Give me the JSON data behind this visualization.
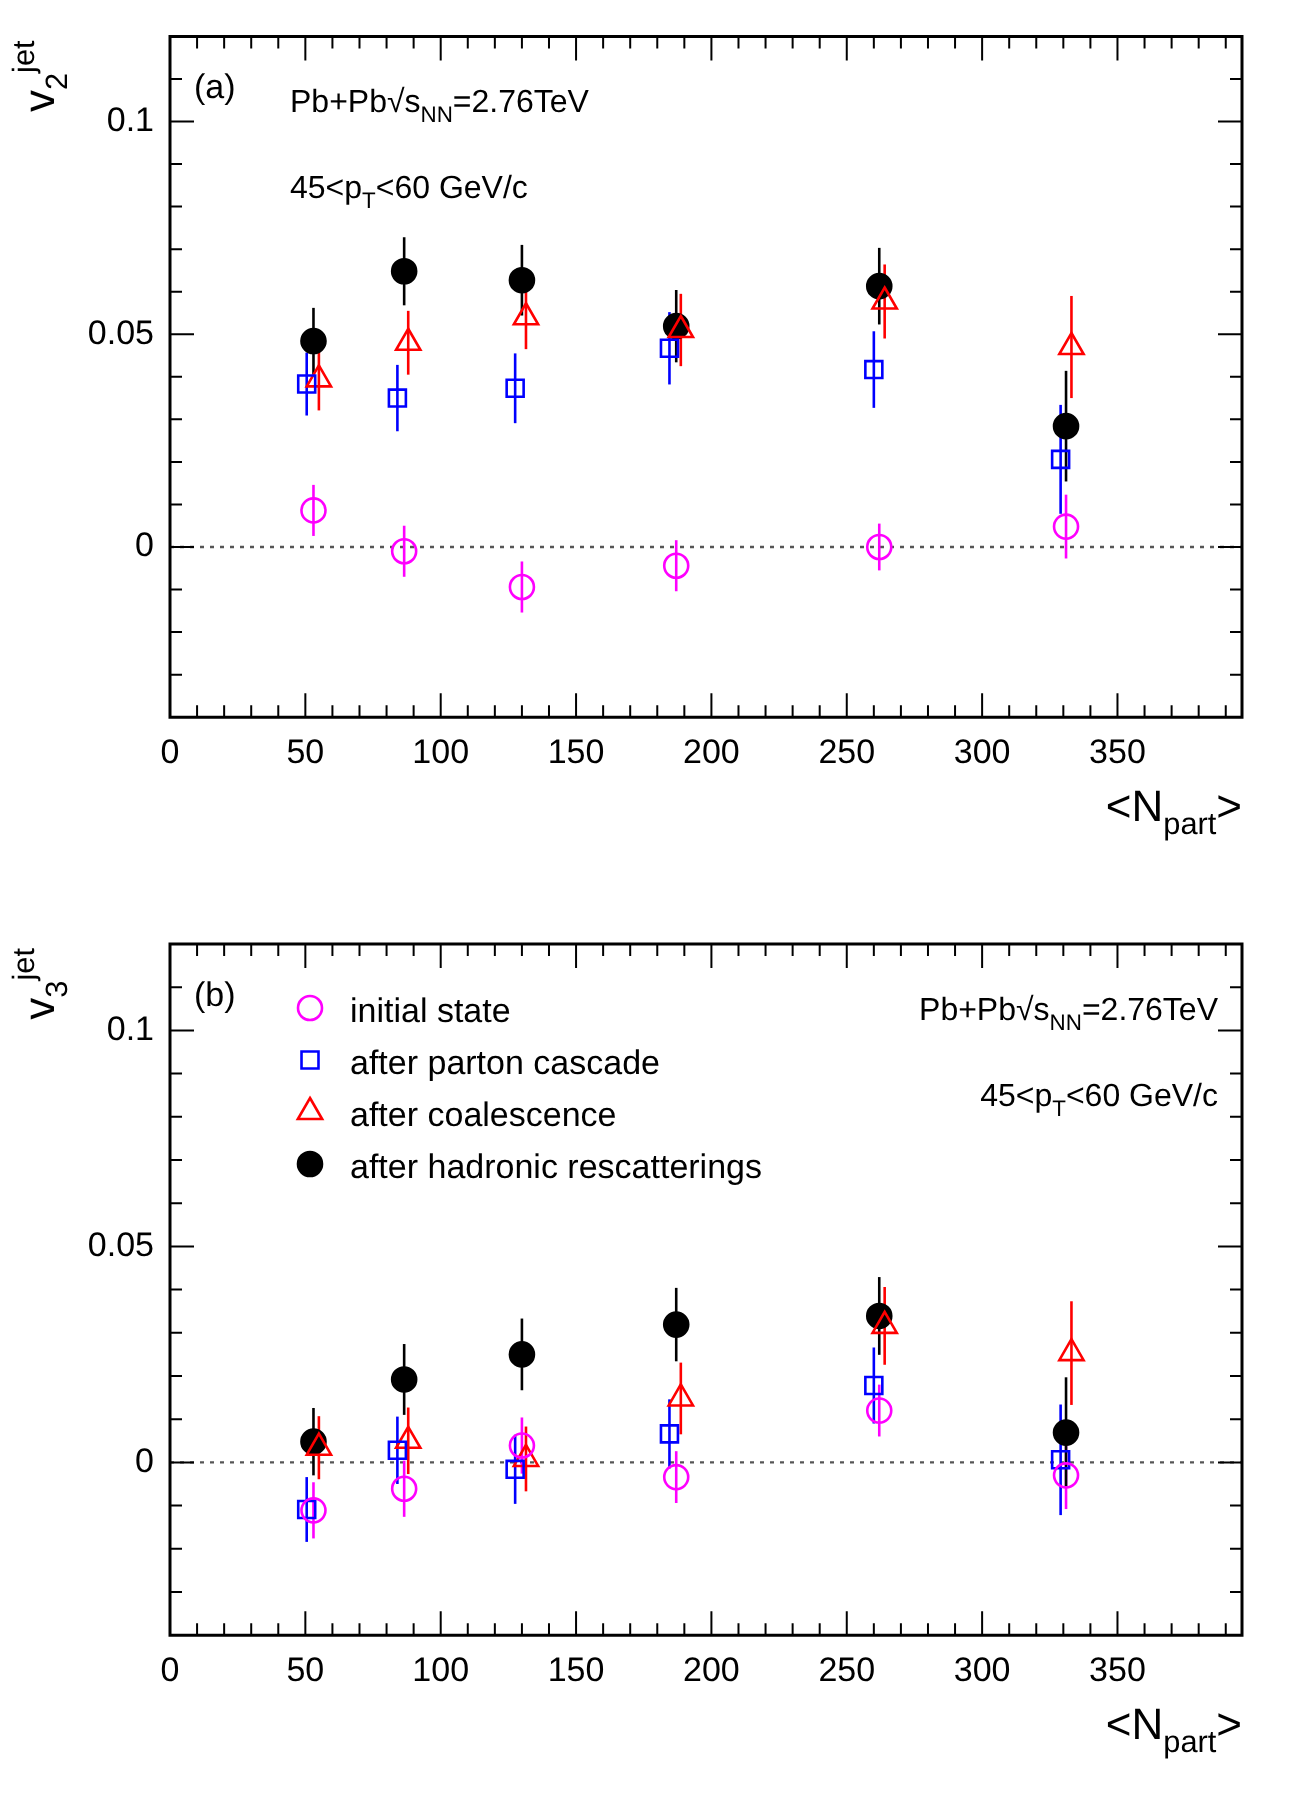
{
  "chart_data": [
    {
      "type": "scatter",
      "ylabel": "v$_{2}$$^{jet}$",
      "xlabel": "<N$_{part}$>",
      "xlim": [
        0,
        396
      ],
      "ylim": [
        -0.04,
        0.12
      ],
      "xticks": [
        0,
        {
          "value": 10,
          "label": null
        },
        {
          "value": 20,
          "label": null
        },
        {
          "value": 30,
          "label": null
        },
        {
          "value": 40,
          "label": null
        },
        50,
        {
          "value": 60,
          "label": null
        },
        {
          "value": 70,
          "label": null
        },
        {
          "value": 80,
          "label": null
        },
        {
          "value": 90,
          "label": null
        },
        100,
        {
          "value": 110,
          "label": null
        },
        {
          "value": 120,
          "label": null
        },
        {
          "value": 130,
          "label": null
        },
        {
          "value": 140,
          "label": null
        },
        150,
        {
          "value": 160,
          "label": null
        },
        {
          "value": 170,
          "label": null
        },
        {
          "value": 180,
          "label": null
        },
        {
          "value": 190,
          "label": null
        },
        200,
        {
          "value": 210,
          "label": null
        },
        {
          "value": 220,
          "label": null
        },
        {
          "value": 230,
          "label": null
        },
        {
          "value": 240,
          "label": null
        },
        250,
        {
          "value": 260,
          "label": null
        },
        {
          "value": 270,
          "label": null
        },
        {
          "value": 280,
          "label": null
        },
        {
          "value": 290,
          "label": null
        },
        300,
        {
          "value": 310,
          "label": null
        },
        {
          "value": 320,
          "label": null
        },
        {
          "value": 330,
          "label": null
        },
        {
          "value": 340,
          "label": null
        },
        350,
        {
          "value": 360,
          "label": null
        },
        {
          "value": 370,
          "label": null
        },
        {
          "value": 380,
          "label": null
        },
        {
          "value": 390,
          "label": null
        }
      ],
      "yticks": [
        {
          "value": -0.03,
          "label": null
        },
        {
          "value": -0.02,
          "label": null
        },
        {
          "value": -0.01,
          "label": null
        },
        0,
        {
          "value": 0.01,
          "label": null
        },
        {
          "value": 0.02,
          "label": null
        },
        {
          "value": 0.03,
          "label": null
        },
        {
          "value": 0.04,
          "label": null
        },
        0.05,
        {
          "value": 0.06,
          "label": null
        },
        {
          "value": 0.07,
          "label": null
        },
        {
          "value": 0.08,
          "label": null
        },
        {
          "value": 0.09,
          "label": null
        },
        0.1,
        {
          "value": 0.11,
          "label": null
        }
      ],
      "grid": false,
      "legend": false,
      "ref_lines": [
        {
          "axis": "y",
          "value": 0,
          "color": "#555555",
          "line_style": "dotted"
        }
      ],
      "annotations": [
        "(a)",
        "Pb+Pb√s$_{NN}$=2.76TeV",
        "45<p$_{T}$<60 GeV/c"
      ],
      "series": [
        {
          "color": "#ff00ff",
          "marker": "circle",
          "x": [
            53,
            86.5,
            130,
            187,
            262,
            331
          ],
          "values": [
            0.0086,
            -0.001,
            -0.0094,
            -0.0044,
            0,
            0.0048
          ],
          "errors": [
            0.006,
            0.006,
            0.006,
            0.006,
            0.0055,
            0.0075
          ]
        },
        {
          "color": "#0000ff",
          "marker": "square",
          "x": [
            50.5,
            84,
            127.5,
            184.5,
            260,
            329
          ],
          "values": [
            0.0383,
            0.035,
            0.0373,
            0.0467,
            0.0417,
            0.0206
          ],
          "errors": [
            0.0074,
            0.0078,
            0.0082,
            0.0085,
            0.009,
            0.0128
          ]
        },
        {
          "color": "#ff0000",
          "marker": "triangle",
          "x": [
            55,
            88,
            131.5,
            188.7,
            264,
            333
          ],
          "values": [
            0.0394,
            0.048,
            0.054,
            0.051,
            0.0577,
            0.047
          ],
          "errors": [
            0.0073,
            0.0075,
            0.0075,
            0.0085,
            0.0087,
            0.012
          ]
        },
        {
          "color": "#000000",
          "marker": "circle",
          "x": [
            53,
            86.5,
            130,
            187,
            262,
            331
          ],
          "values": [
            0.0484,
            0.0648,
            0.0627,
            0.0519,
            0.0613,
            0.0284
          ],
          "errors": [
            0.0078,
            0.008,
            0.0083,
            0.0085,
            0.009,
            0.013
          ]
        }
      ]
    },
    {
      "type": "scatter",
      "ylabel": "v$_{3}$$^{jet}$",
      "xlabel": "<N$_{part}$>",
      "xlim": [
        0,
        396
      ],
      "ylim": [
        -0.04,
        0.12
      ],
      "xticks": [
        0,
        {
          "value": 10,
          "label": null
        },
        {
          "value": 20,
          "label": null
        },
        {
          "value": 30,
          "label": null
        },
        {
          "value": 40,
          "label": null
        },
        50,
        {
          "value": 60,
          "label": null
        },
        {
          "value": 70,
          "label": null
        },
        {
          "value": 80,
          "label": null
        },
        {
          "value": 90,
          "label": null
        },
        100,
        {
          "value": 110,
          "label": null
        },
        {
          "value": 120,
          "label": null
        },
        {
          "value": 130,
          "label": null
        },
        {
          "value": 140,
          "label": null
        },
        150,
        {
          "value": 160,
          "label": null
        },
        {
          "value": 170,
          "label": null
        },
        {
          "value": 180,
          "label": null
        },
        {
          "value": 190,
          "label": null
        },
        200,
        {
          "value": 210,
          "label": null
        },
        {
          "value": 220,
          "label": null
        },
        {
          "value": 230,
          "label": null
        },
        {
          "value": 240,
          "label": null
        },
        250,
        {
          "value": 260,
          "label": null
        },
        {
          "value": 270,
          "label": null
        },
        {
          "value": 280,
          "label": null
        },
        {
          "value": 290,
          "label": null
        },
        300,
        {
          "value": 310,
          "label": null
        },
        {
          "value": 320,
          "label": null
        },
        {
          "value": 330,
          "label": null
        },
        {
          "value": 340,
          "label": null
        },
        350,
        {
          "value": 360,
          "label": null
        },
        {
          "value": 370,
          "label": null
        },
        {
          "value": 380,
          "label": null
        },
        {
          "value": 390,
          "label": null
        }
      ],
      "yticks": [
        {
          "value": -0.03,
          "label": null
        },
        {
          "value": -0.02,
          "label": null
        },
        {
          "value": -0.01,
          "label": null
        },
        0,
        {
          "value": 0.01,
          "label": null
        },
        {
          "value": 0.02,
          "label": null
        },
        {
          "value": 0.03,
          "label": null
        },
        {
          "value": 0.04,
          "label": null
        },
        0.05,
        {
          "value": 0.06,
          "label": null
        },
        {
          "value": 0.07,
          "label": null
        },
        {
          "value": 0.08,
          "label": null
        },
        {
          "value": 0.09,
          "label": null
        },
        0.1,
        {
          "value": 0.11,
          "label": null
        }
      ],
      "grid": false,
      "legend": "top left",
      "ref_lines": [
        {
          "axis": "y",
          "value": 0,
          "color": "#555555",
          "line_style": "dotted"
        }
      ],
      "annotations": [
        "(b)",
        "Pb+Pb√s$_{NN}$=2.76TeV",
        "45<p$_{T}$<60 GeV/c"
      ],
      "series": [
        {
          "name": "initial state",
          "color": "#ff00ff",
          "marker": "circle",
          "x": [
            53,
            86.5,
            130,
            187,
            262,
            331
          ],
          "values": [
            -0.0111,
            -0.0061,
            0.0039,
            -0.0034,
            0.012,
            -0.003
          ],
          "errors": [
            0.0065,
            0.0065,
            0.0065,
            0.006,
            0.006,
            0.0078
          ]
        },
        {
          "name": "after parton cascade",
          "color": "#0000ff",
          "marker": "square",
          "x": [
            50.5,
            84,
            127.5,
            184.5,
            260,
            329
          ],
          "values": [
            -0.0109,
            0.0028,
            -0.0016,
            0.0066,
            0.0178,
            0.0006
          ],
          "errors": [
            0.0075,
            0.0078,
            0.008,
            0.008,
            0.0088,
            0.0128
          ]
        },
        {
          "name": "after coalescence",
          "color": "#ff0000",
          "marker": "triangle",
          "x": [
            55,
            88,
            131.5,
            188.7,
            264,
            333
          ],
          "values": [
            0.0034,
            0.005,
            0.0008,
            0.0148,
            0.0316,
            0.0253
          ],
          "errors": [
            0.0073,
            0.0077,
            0.0075,
            0.0083,
            0.009,
            0.012
          ]
        },
        {
          "name": "after hadronic rescatterings",
          "color": "#000000",
          "marker": "circle",
          "x": [
            53,
            86.5,
            130,
            187,
            262,
            331
          ],
          "values": [
            0.0048,
            0.0192,
            0.025,
            0.0319,
            0.0339,
            0.0069
          ],
          "errors": [
            0.0078,
            0.0082,
            0.0083,
            0.0085,
            0.009,
            0.0128
          ]
        }
      ]
    }
  ]
}
